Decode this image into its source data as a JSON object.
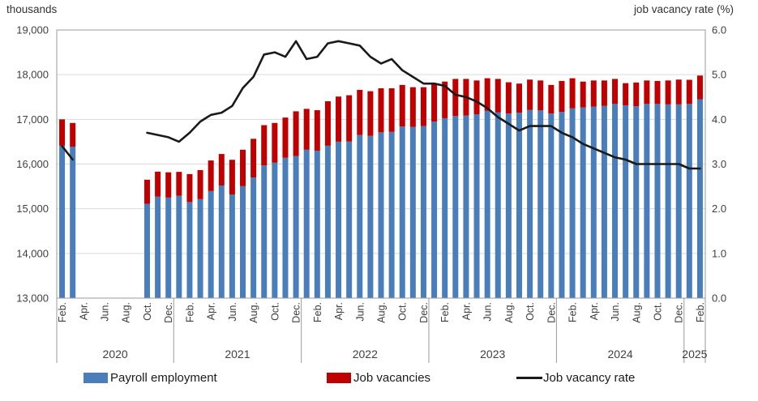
{
  "left_axis_title": "thousands",
  "right_axis_title": "job vacancy rate (%)",
  "colors": {
    "payroll": "#4a7ebb",
    "vacancies": "#c00000",
    "rate_line": "#1a1a1a",
    "gridline": "#d9d9d9",
    "border": "#9b9b9b",
    "text": "#3f3f3f"
  },
  "legend": {
    "items": [
      {
        "label": "Payroll employment",
        "type": "rect",
        "color": "#4a7ebb"
      },
      {
        "label": "Job vacancies",
        "type": "rect",
        "color": "#c00000"
      },
      {
        "label": "Job vacancy rate",
        "type": "line",
        "color": "#1a1a1a"
      }
    ]
  },
  "chart_data": {
    "type": "bar+line",
    "note_gap": "No data for Apr-Sep 2020 (nulls)",
    "months": [
      "Feb 2020",
      "Mar 2020",
      "Apr 2020",
      "May 2020",
      "Jun 2020",
      "Jul 2020",
      "Aug 2020",
      "Sep 2020",
      "Oct 2020",
      "Nov 2020",
      "Dec 2020",
      "Jan 2021",
      "Feb 2021",
      "Mar 2021",
      "Apr 2021",
      "May 2021",
      "Jun 2021",
      "Jul 2021",
      "Aug 2021",
      "Sep 2021",
      "Oct 2021",
      "Nov 2021",
      "Dec 2021",
      "Jan 2022",
      "Feb 2022",
      "Mar 2022",
      "Apr 2022",
      "May 2022",
      "Jun 2022",
      "Jul 2022",
      "Aug 2022",
      "Sep 2022",
      "Oct 2022",
      "Nov 2022",
      "Dec 2022",
      "Jan 2023",
      "Feb 2023",
      "Mar 2023",
      "Apr 2023",
      "May 2023",
      "Jun 2023",
      "Jul 2023",
      "Aug 2023",
      "Sep 2023",
      "Oct 2023",
      "Nov 2023",
      "Dec 2023",
      "Jan 2024",
      "Feb 2024",
      "Mar 2024",
      "Apr 2024",
      "May 2024",
      "Jun 2024",
      "Jul 2024",
      "Aug 2024",
      "Sep 2024",
      "Oct 2024",
      "Nov 2024",
      "Dec 2024",
      "Jan 2025",
      "Feb 2025"
    ],
    "series": [
      {
        "name": "Payroll employment",
        "axis": "left",
        "unit": "thousands",
        "values": [
          16410,
          16390,
          null,
          null,
          null,
          null,
          null,
          null,
          15110,
          15270,
          15250,
          15290,
          15150,
          15215,
          15395,
          15520,
          15320,
          15505,
          15700,
          15970,
          16030,
          16140,
          16180,
          16320,
          16300,
          16410,
          16500,
          16505,
          16650,
          16630,
          16710,
          16720,
          16840,
          16830,
          16850,
          16950,
          17025,
          17075,
          17085,
          17115,
          17190,
          17160,
          17130,
          17150,
          17210,
          17200,
          17130,
          17165,
          17245,
          17265,
          17285,
          17300,
          17345,
          17315,
          17295,
          17345,
          17345,
          17335,
          17335,
          17345,
          17450
        ]
      },
      {
        "name": "Job vacancies",
        "axis": "left",
        "unit": "thousands",
        "values": [
          590,
          530,
          null,
          null,
          null,
          null,
          null,
          null,
          540,
          560,
          565,
          535,
          625,
          650,
          685,
          705,
          775,
          815,
          865,
          900,
          890,
          900,
          1000,
          915,
          905,
          995,
          1010,
          1035,
          1010,
          1000,
          985,
          975,
          930,
          890,
          870,
          860,
          820,
          830,
          820,
          755,
          730,
          745,
          700,
          650,
          680,
          670,
          640,
          695,
          675,
          580,
          585,
          570,
          560,
          495,
          530,
          525,
          515,
          535,
          555,
          540,
          530
        ]
      },
      {
        "name": "Job vacancy rate",
        "axis": "right",
        "unit": "%",
        "values": [
          3.4,
          3.1,
          null,
          null,
          null,
          null,
          null,
          null,
          3.7,
          3.65,
          3.6,
          3.5,
          3.7,
          3.95,
          4.1,
          4.15,
          4.3,
          4.7,
          4.95,
          5.45,
          5.5,
          5.4,
          5.75,
          5.35,
          5.4,
          5.7,
          5.75,
          5.7,
          5.65,
          5.4,
          5.25,
          5.35,
          5.1,
          4.95,
          4.8,
          4.8,
          4.75,
          4.55,
          4.5,
          4.4,
          4.25,
          4.05,
          3.9,
          3.75,
          3.85,
          3.85,
          3.85,
          3.7,
          3.6,
          3.45,
          3.35,
          3.25,
          3.15,
          3.1,
          3.0,
          3.0,
          3.0,
          3.0,
          3.0,
          2.9,
          2.9
        ]
      }
    ],
    "left_axis": {
      "min": 13000,
      "max": 19000,
      "tick_values": [
        19000,
        18000,
        17000,
        16000,
        15000,
        14000,
        13000
      ],
      "tick_labels": [
        "19,000",
        "18,000",
        "17,000",
        "16,000",
        "15,000",
        "14,000",
        "13,000"
      ]
    },
    "right_axis": {
      "min": 0,
      "max": 6,
      "tick_values": [
        6,
        5,
        4,
        3,
        2,
        1,
        0
      ],
      "tick_labels": [
        "6.0",
        "5.0",
        "4.0",
        "3.0",
        "2.0",
        "1.0",
        "0.0"
      ]
    },
    "x_axis": {
      "month_tick_labels": [
        "Feb.",
        "Apr.",
        "Jun.",
        "Aug.",
        "Oct.",
        "Dec."
      ],
      "year_spans": [
        {
          "label": "2020",
          "from": 0,
          "to": 11
        },
        {
          "label": "2021",
          "from": 11,
          "to": 23
        },
        {
          "label": "2022",
          "from": 23,
          "to": 35
        },
        {
          "label": "2023",
          "from": 35,
          "to": 47
        },
        {
          "label": "2024",
          "from": 47,
          "to": 59
        },
        {
          "label": "2025",
          "from": 59,
          "to": 61
        }
      ],
      "grid": true,
      "legend_position": "bottom"
    }
  }
}
